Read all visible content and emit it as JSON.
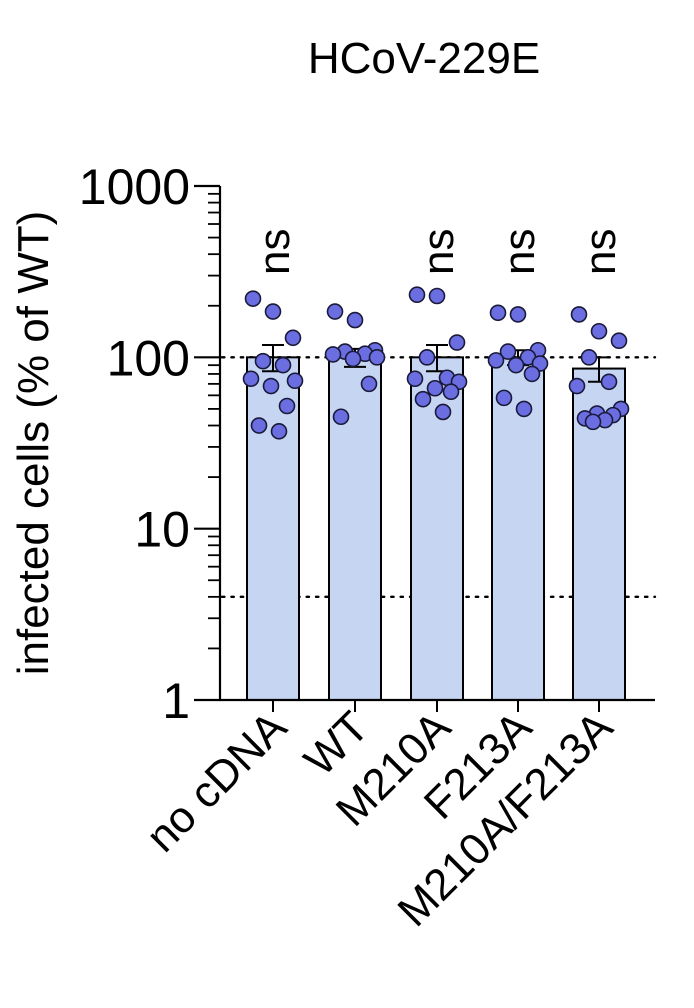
{
  "chart_data": {
    "type": "bar",
    "title": "HCoV-229E",
    "ylabel": "infected cells (% of WT)",
    "xlabel": "",
    "yscale": "log",
    "ylim": [
      1,
      1000
    ],
    "yticks": [
      "1",
      "10",
      "100",
      "1000"
    ],
    "categories": [
      "no cDNA",
      "WT",
      "M210A",
      "F213A",
      "M210A/F213A"
    ],
    "values": [
      100,
      100,
      100,
      100,
      86
    ],
    "error_upper": [
      118,
      112,
      118,
      110,
      100
    ],
    "error_lower": [
      83,
      88,
      83,
      90,
      72
    ],
    "significance": [
      "ns",
      "",
      "ns",
      "ns",
      "ns"
    ],
    "points": [
      [
        220,
        185,
        130,
        95,
        90,
        75,
        73,
        68,
        52,
        40,
        37
      ],
      [
        185,
        165,
        110,
        108,
        105,
        104,
        100,
        98,
        70,
        45
      ],
      [
        232,
        228,
        122,
        100,
        76,
        75,
        72,
        66,
        63,
        57,
        48
      ],
      [
        182,
        178,
        110,
        108,
        100,
        96,
        92,
        90,
        80,
        58,
        50
      ],
      [
        178,
        142,
        125,
        100,
        72,
        68,
        50,
        47,
        46,
        44,
        43,
        42
      ]
    ],
    "reference_lines": [
      100,
      4
    ],
    "bar_color": "#c5d5f2",
    "point_color": "#6b6ee0"
  }
}
